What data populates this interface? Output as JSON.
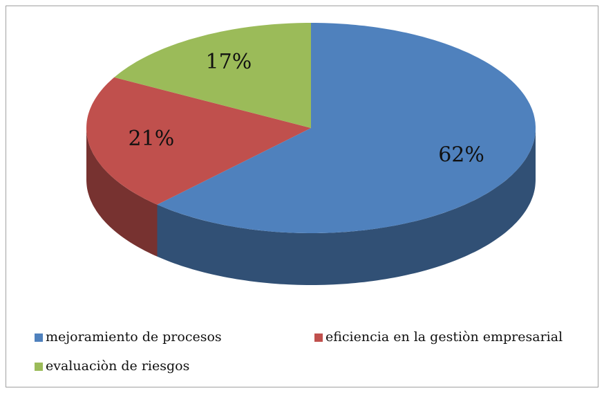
{
  "chart_data": {
    "type": "pie",
    "categories": [
      "mejoramiento de procesos",
      "eficiencia en la gestiòn empresarial",
      "evaluaciòn de riesgos"
    ],
    "values": [
      62,
      21,
      17
    ],
    "value_labels": [
      "62%",
      "21%",
      "17%"
    ],
    "colors": [
      "#4f81bd",
      "#c0504d",
      "#9bbb59"
    ],
    "legend": "bottom"
  }
}
